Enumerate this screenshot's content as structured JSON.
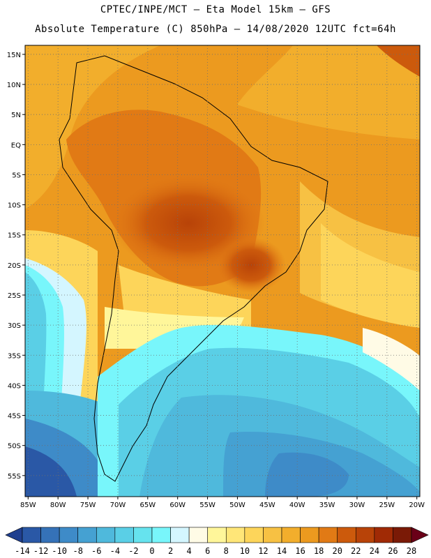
{
  "header": {
    "line1": "CPTEC/INPE/MCT –  Eta Model 15km – GFS",
    "line2": "Absolute Temperature (C) 850hPa – 14/08/2020 12UTC fct=64h"
  },
  "map": {
    "lat_labels": [
      "15N",
      "10N",
      "5N",
      "EQ",
      "5S",
      "10S",
      "15S",
      "20S",
      "25S",
      "30S",
      "35S",
      "40S",
      "45S",
      "50S",
      "55S"
    ],
    "lon_labels": [
      "85W",
      "80W",
      "75W",
      "70W",
      "65W",
      "60W",
      "55W",
      "50W",
      "45W",
      "40W",
      "35W",
      "30W",
      "25W",
      "20W"
    ],
    "lat_range": [
      16.5,
      -58.5
    ],
    "lon_range": [
      -85.5,
      -19.5
    ],
    "grid": true
  },
  "legend": {
    "labels": [
      "-14",
      "-12",
      "-10",
      "-8",
      "-6",
      "-4",
      "-2",
      "0",
      "2",
      "4",
      "6",
      "8",
      "10",
      "12",
      "14",
      "16",
      "18",
      "20",
      "22",
      "24",
      "26",
      "28"
    ],
    "colors": [
      "#1f3f8f",
      "#2a58a6",
      "#3572b8",
      "#3e8bc8",
      "#45a1d2",
      "#4fb9dc",
      "#5acfe6",
      "#66e3ee",
      "#78f6fb",
      "#d4f6ff",
      "#fffbe6",
      "#fff69a",
      "#ffe678",
      "#fdd55a",
      "#f7c143",
      "#f2ae2c",
      "#ec9a1f",
      "#e17a15",
      "#cc5a0c",
      "#b84308",
      "#a02a05",
      "#7a1a06",
      "#6a0018"
    ]
  }
}
